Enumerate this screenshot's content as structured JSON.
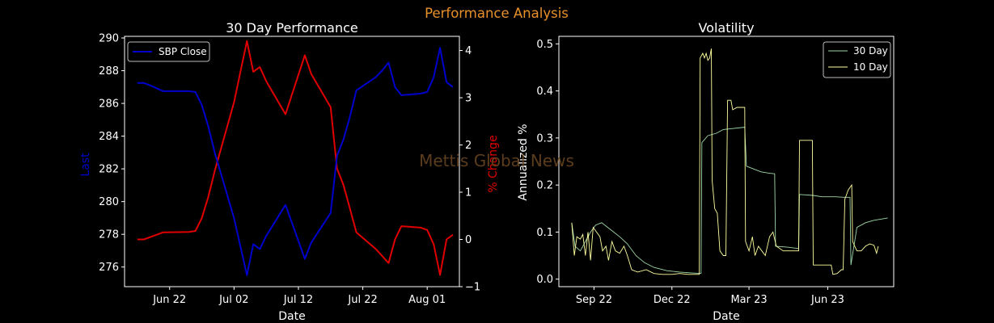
{
  "figure": {
    "suptitle": "Performance Analysis",
    "watermark": "Mettis Global News"
  },
  "colors": {
    "background": "#000000",
    "suptitle": "#e8902a",
    "watermark": "#6b4722",
    "axis": "#ffffff",
    "close_line": "#0000cd",
    "pct_line": "#e00000",
    "vol30": "#9fd8a8",
    "vol10": "#ffffa0"
  },
  "chart_data": [
    {
      "type": "line",
      "title": "30 Day Performance",
      "xlabel": "Date",
      "ylabel": "Last",
      "ylabel_right": "% Change",
      "ylim": [
        274.8,
        290.1
      ],
      "ylim_right": [
        -1.0,
        4.3
      ],
      "xlim": [
        "2023-06-15",
        "2023-08-06"
      ],
      "yticks": [
        276,
        278,
        280,
        282,
        284,
        286,
        288,
        290
      ],
      "yticks_right": [
        -1,
        0,
        1,
        2,
        3,
        4
      ],
      "xticks": [
        {
          "date": "2023-06-22",
          "label": "Jun 22"
        },
        {
          "date": "2023-07-02",
          "label": "Jul 02"
        },
        {
          "date": "2023-07-12",
          "label": "Jul 12"
        },
        {
          "date": "2023-07-22",
          "label": "Jul 22"
        },
        {
          "date": "2023-08-01",
          "label": "Aug 01"
        }
      ],
      "legend": {
        "position": "upper left",
        "entries": [
          "SBP Close"
        ]
      },
      "series": [
        {
          "name": "SBP Close",
          "axis": "left",
          "points": [
            [
              "2023-06-17",
              287.25
            ],
            [
              "2023-06-18",
              287.25
            ],
            [
              "2023-06-19",
              287.1
            ],
            [
              "2023-06-21",
              286.75
            ],
            [
              "2023-06-25",
              286.75
            ],
            [
              "2023-06-26",
              286.7
            ],
            [
              "2023-06-27",
              285.9
            ],
            [
              "2023-06-28",
              284.6
            ],
            [
              "2023-06-29",
              283.0
            ],
            [
              "2023-07-02",
              279.0
            ],
            [
              "2023-07-04",
              275.5
            ],
            [
              "2023-07-05",
              277.4
            ],
            [
              "2023-07-06",
              277.1
            ],
            [
              "2023-07-07",
              277.9
            ],
            [
              "2023-07-10",
              279.8
            ],
            [
              "2023-07-13",
              276.5
            ],
            [
              "2023-07-14",
              277.5
            ],
            [
              "2023-07-17",
              279.3
            ],
            [
              "2023-07-18",
              282.8
            ],
            [
              "2023-07-19",
              283.8
            ],
            [
              "2023-07-20",
              285.2
            ],
            [
              "2023-07-21",
              286.8
            ],
            [
              "2023-07-24",
              287.6
            ],
            [
              "2023-07-25",
              288.0
            ],
            [
              "2023-07-26",
              288.5
            ],
            [
              "2023-07-27",
              287.0
            ],
            [
              "2023-07-28",
              286.5
            ],
            [
              "2023-07-31",
              286.6
            ],
            [
              "2023-08-01",
              286.7
            ],
            [
              "2023-08-02",
              287.6
            ],
            [
              "2023-08-03",
              289.4
            ],
            [
              "2023-08-04",
              287.3
            ],
            [
              "2023-08-05",
              287.0
            ]
          ]
        },
        {
          "name": "% Change",
          "axis": "right",
          "points": [
            [
              "2023-06-17",
              0.0
            ],
            [
              "2023-06-18",
              0.0
            ],
            [
              "2023-06-19",
              0.05
            ],
            [
              "2023-06-21",
              0.15
            ],
            [
              "2023-06-25",
              0.16
            ],
            [
              "2023-06-26",
              0.18
            ],
            [
              "2023-06-27",
              0.45
            ],
            [
              "2023-06-28",
              0.9
            ],
            [
              "2023-06-29",
              1.45
            ],
            [
              "2023-07-02",
              2.9
            ],
            [
              "2023-07-04",
              4.2
            ],
            [
              "2023-07-05",
              3.55
            ],
            [
              "2023-07-06",
              3.65
            ],
            [
              "2023-07-07",
              3.35
            ],
            [
              "2023-07-10",
              2.65
            ],
            [
              "2023-07-13",
              3.9
            ],
            [
              "2023-07-14",
              3.5
            ],
            [
              "2023-07-17",
              2.8
            ],
            [
              "2023-07-18",
              1.5
            ],
            [
              "2023-07-19",
              1.15
            ],
            [
              "2023-07-20",
              0.65
            ],
            [
              "2023-07-21",
              0.15
            ],
            [
              "2023-07-24",
              -0.2
            ],
            [
              "2023-07-25",
              -0.35
            ],
            [
              "2023-07-26",
              -0.5
            ],
            [
              "2023-07-27",
              0.0
            ],
            [
              "2023-07-28",
              0.28
            ],
            [
              "2023-07-31",
              0.25
            ],
            [
              "2023-08-01",
              0.2
            ],
            [
              "2023-08-02",
              -0.1
            ],
            [
              "2023-08-03",
              -0.75
            ],
            [
              "2023-08-04",
              0.0
            ],
            [
              "2023-08-05",
              0.1
            ]
          ]
        }
      ]
    },
    {
      "type": "line",
      "title": "Volatility",
      "xlabel": "Date",
      "ylabel": "Annualized %",
      "ylim": [
        -0.016,
        0.516
      ],
      "xlim": [
        "2022-07-22",
        "2023-08-17"
      ],
      "yticks": [
        0.0,
        0.1,
        0.2,
        0.3,
        0.4,
        0.5
      ],
      "xticks": [
        {
          "date": "2022-09-01",
          "label": "Sep 22"
        },
        {
          "date": "2022-12-01",
          "label": "Dec 22"
        },
        {
          "date": "2023-03-01",
          "label": "Mar 23"
        },
        {
          "date": "2023-06-01",
          "label": "Jun 23"
        }
      ],
      "legend": {
        "position": "upper right",
        "entries": [
          "30 Day",
          "10 Day"
        ]
      },
      "series": [
        {
          "name": "30 Day",
          "points": [
            [
              "2022-08-06",
              0.12
            ],
            [
              "2022-08-10",
              0.07
            ],
            [
              "2022-08-16",
              0.06
            ],
            [
              "2022-08-22",
              0.08
            ],
            [
              "2022-08-28",
              0.1
            ],
            [
              "2022-09-03",
              0.115
            ],
            [
              "2022-09-10",
              0.12
            ],
            [
              "2022-09-17",
              0.11
            ],
            [
              "2022-09-24",
              0.1
            ],
            [
              "2022-10-01",
              0.09
            ],
            [
              "2022-10-10",
              0.075
            ],
            [
              "2022-10-20",
              0.05
            ],
            [
              "2022-10-30",
              0.035
            ],
            [
              "2022-11-10",
              0.025
            ],
            [
              "2022-11-25",
              0.018
            ],
            [
              "2022-12-10",
              0.015
            ],
            [
              "2022-12-25",
              0.013
            ],
            [
              "2023-01-04",
              0.012
            ],
            [
              "2023-01-05",
              0.29
            ],
            [
              "2023-01-12",
              0.305
            ],
            [
              "2023-01-22",
              0.31
            ],
            [
              "2023-01-30",
              0.318
            ],
            [
              "2023-02-10",
              0.32
            ],
            [
              "2023-02-20",
              0.322
            ],
            [
              "2023-02-24",
              0.323
            ],
            [
              "2023-02-26",
              0.24
            ],
            [
              "2023-03-05",
              0.235
            ],
            [
              "2023-03-15",
              0.228
            ],
            [
              "2023-03-25",
              0.225
            ],
            [
              "2023-03-31",
              0.224
            ],
            [
              "2023-04-01",
              0.07
            ],
            [
              "2023-04-15",
              0.068
            ],
            [
              "2023-04-28",
              0.065
            ],
            [
              "2023-04-29",
              0.18
            ],
            [
              "2023-05-15",
              0.178
            ],
            [
              "2023-05-25",
              0.175
            ],
            [
              "2023-06-10",
              0.175
            ],
            [
              "2023-06-20",
              0.174
            ],
            [
              "2023-06-27",
              0.174
            ],
            [
              "2023-06-28",
              0.03
            ],
            [
              "2023-07-05",
              0.11
            ],
            [
              "2023-07-15",
              0.12
            ],
            [
              "2023-07-25",
              0.125
            ],
            [
              "2023-08-04",
              0.128
            ],
            [
              "2023-08-10",
              0.13
            ]
          ]
        },
        {
          "name": "10 Day",
          "points": [
            [
              "2022-08-06",
              0.12
            ],
            [
              "2022-08-09",
              0.05
            ],
            [
              "2022-08-12",
              0.09
            ],
            [
              "2022-08-16",
              0.085
            ],
            [
              "2022-08-19",
              0.095
            ],
            [
              "2022-08-22",
              0.05
            ],
            [
              "2022-08-25",
              0.1
            ],
            [
              "2022-08-28",
              0.04
            ],
            [
              "2022-08-31",
              0.11
            ],
            [
              "2022-09-04",
              0.1
            ],
            [
              "2022-09-08",
              0.09
            ],
            [
              "2022-09-11",
              0.06
            ],
            [
              "2022-09-15",
              0.07
            ],
            [
              "2022-09-18",
              0.04
            ],
            [
              "2022-09-22",
              0.08
            ],
            [
              "2022-09-26",
              0.06
            ],
            [
              "2022-10-01",
              0.055
            ],
            [
              "2022-10-06",
              0.07
            ],
            [
              "2022-10-10",
              0.05
            ],
            [
              "2022-10-15",
              0.02
            ],
            [
              "2022-10-22",
              0.015
            ],
            [
              "2022-11-01",
              0.02
            ],
            [
              "2022-11-10",
              0.012
            ],
            [
              "2022-11-20",
              0.01
            ],
            [
              "2022-12-01",
              0.01
            ],
            [
              "2022-12-10",
              0.012
            ],
            [
              "2022-12-20",
              0.01
            ],
            [
              "2023-01-02",
              0.01
            ],
            [
              "2023-01-03",
              0.47
            ],
            [
              "2023-01-06",
              0.48
            ],
            [
              "2023-01-08",
              0.47
            ],
            [
              "2023-01-10",
              0.48
            ],
            [
              "2023-01-12",
              0.465
            ],
            [
              "2023-01-14",
              0.47
            ],
            [
              "2023-01-16",
              0.49
            ],
            [
              "2023-01-17",
              0.21
            ],
            [
              "2023-01-20",
              0.15
            ],
            [
              "2023-01-23",
              0.14
            ],
            [
              "2023-01-26",
              0.06
            ],
            [
              "2023-01-30",
              0.05
            ],
            [
              "2023-02-02",
              0.05
            ],
            [
              "2023-02-04",
              0.38
            ],
            [
              "2023-02-08",
              0.38
            ],
            [
              "2023-02-10",
              0.36
            ],
            [
              "2023-02-15",
              0.365
            ],
            [
              "2023-02-20",
              0.365
            ],
            [
              "2023-02-24",
              0.365
            ],
            [
              "2023-02-25",
              0.08
            ],
            [
              "2023-03-01",
              0.06
            ],
            [
              "2023-03-05",
              0.09
            ],
            [
              "2023-03-08",
              0.05
            ],
            [
              "2023-03-12",
              0.07
            ],
            [
              "2023-03-16",
              0.06
            ],
            [
              "2023-03-20",
              0.05
            ],
            [
              "2023-03-25",
              0.09
            ],
            [
              "2023-03-29",
              0.1
            ],
            [
              "2023-04-02",
              0.07
            ],
            [
              "2023-04-10",
              0.06
            ],
            [
              "2023-04-20",
              0.06
            ],
            [
              "2023-04-28",
              0.06
            ],
            [
              "2023-04-29",
              0.295
            ],
            [
              "2023-05-10",
              0.295
            ],
            [
              "2023-05-14",
              0.295
            ],
            [
              "2023-05-15",
              0.03
            ],
            [
              "2023-05-25",
              0.03
            ],
            [
              "2023-06-05",
              0.03
            ],
            [
              "2023-06-07",
              0.01
            ],
            [
              "2023-06-12",
              0.012
            ],
            [
              "2023-06-17",
              0.02
            ],
            [
              "2023-06-19",
              0.02
            ],
            [
              "2023-06-21",
              0.17
            ],
            [
              "2023-06-25",
              0.19
            ],
            [
              "2023-06-29",
              0.2
            ],
            [
              "2023-06-30",
              0.08
            ],
            [
              "2023-07-05",
              0.06
            ],
            [
              "2023-07-10",
              0.06
            ],
            [
              "2023-07-15",
              0.07
            ],
            [
              "2023-07-20",
              0.075
            ],
            [
              "2023-07-25",
              0.072
            ],
            [
              "2023-07-28",
              0.055
            ],
            [
              "2023-07-30",
              0.07
            ]
          ]
        }
      ]
    }
  ]
}
